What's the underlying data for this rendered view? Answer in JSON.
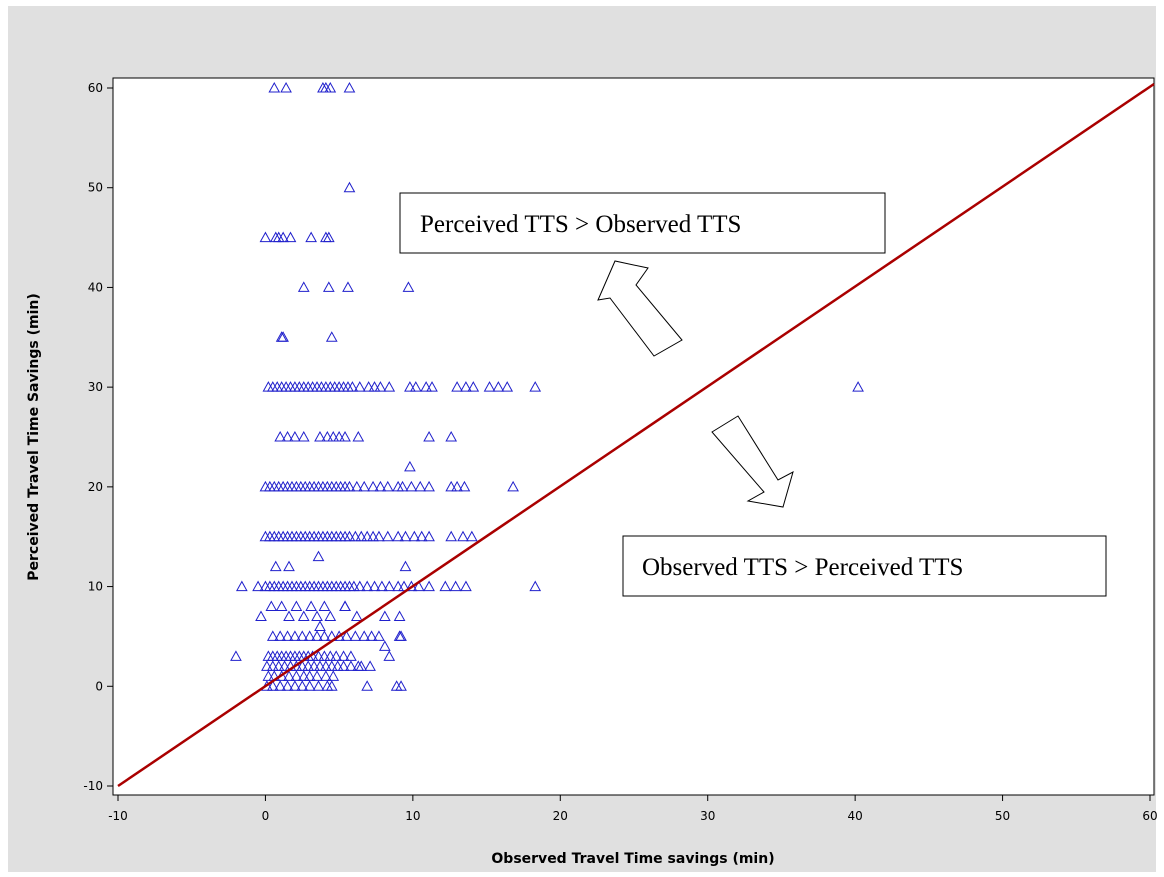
{
  "chart_data": {
    "type": "scatter",
    "title": "",
    "xlabel": "Observed Travel Time savings (min)",
    "ylabel": "Perceived Travel Time Savings (min)",
    "xlim": [
      -10,
      60
    ],
    "ylim": [
      -10,
      60
    ],
    "xticks": [
      "-10",
      "0",
      "10",
      "20",
      "30",
      "40",
      "50",
      "60"
    ],
    "yticks": [
      "-10",
      "0",
      "10",
      "20",
      "30",
      "40",
      "50",
      "60"
    ],
    "grid": false,
    "legend": "none",
    "colors": {
      "background": "#e0e0e0",
      "plot_bg": "#ffffff",
      "points": "#2020cc",
      "reference_line": "#aa0000"
    },
    "marker": "triangle-open",
    "reference_line": {
      "x": [
        -10,
        60
      ],
      "y": [
        -10,
        60
      ]
    },
    "annotations": [
      {
        "text": "Perceived TTS > Observed TTS",
        "arrow": "up-left"
      },
      {
        "text": "Observed TTS > Perceived TTS",
        "arrow": "down-right"
      }
    ],
    "series": [
      {
        "x": [
          0.6,
          1.4,
          3.9,
          4.1,
          4.4,
          5.7,
          5.7,
          0,
          0.7,
          0.9,
          1.2,
          1.7,
          3.1,
          4.1,
          4.3,
          11,
          2.6,
          4.3,
          5.6,
          9.7,
          1.1,
          1.2,
          4.5,
          0.2,
          0.5,
          0.8,
          1.1,
          1.4,
          1.7,
          2,
          2.3,
          2.6,
          2.9,
          3.2,
          3.5,
          3.8,
          4.1,
          4.4,
          4.7,
          5,
          5.3,
          5.6,
          5.9,
          6.4,
          7,
          7.4,
          7.8,
          8.4,
          9.8,
          10.2,
          10.9,
          11.3,
          13,
          13.6,
          14.1,
          15.2,
          15.8,
          16.4,
          18.3,
          40.2,
          1,
          1.5,
          2,
          2.6,
          3.7,
          4.2,
          4.6,
          5,
          5.4,
          6.3,
          11.1,
          12.6,
          9.8,
          0,
          0.3,
          0.6,
          0.9,
          1.2,
          1.5,
          1.8,
          2.1,
          2.4,
          2.7,
          3,
          3.3,
          3.6,
          3.9,
          4.2,
          4.5,
          4.8,
          5.1,
          5.4,
          5.7,
          6.2,
          6.7,
          7.3,
          7.8,
          8.3,
          9,
          9.3,
          9.9,
          10.5,
          11.1,
          12.6,
          13,
          13.5,
          16.8,
          0,
          0.3,
          0.6,
          0.9,
          1.2,
          1.5,
          1.8,
          2.1,
          2.4,
          2.7,
          3,
          3.3,
          3.6,
          3.9,
          4.2,
          4.5,
          4.8,
          5.1,
          5.4,
          5.7,
          6.1,
          6.5,
          6.9,
          7.3,
          7.7,
          8.3,
          9,
          9.5,
          10.1,
          10.6,
          11.1,
          12.6,
          13.4,
          14,
          0.7,
          1.6,
          3.6,
          9.5,
          -1.6,
          -0.5,
          0,
          0.3,
          0.6,
          0.9,
          1.2,
          1.5,
          1.8,
          2.1,
          2.4,
          2.7,
          3,
          3.3,
          3.6,
          3.9,
          4.2,
          4.5,
          4.8,
          5.1,
          5.4,
          5.7,
          6,
          6.4,
          6.9,
          7.4,
          7.9,
          8.4,
          9,
          9.4,
          9.9,
          10.4,
          11.1,
          12.2,
          12.9,
          13.6,
          18.3,
          5.4,
          8.1,
          9.1,
          -0.3,
          0.4,
          1.1,
          1.6,
          2.1,
          2.6,
          3.1,
          3.5,
          4,
          4.4,
          5.4,
          6.2,
          9.2,
          0.5,
          1,
          1.5,
          2,
          2.5,
          3,
          3.5,
          4,
          4.5,
          5,
          5.5,
          6.1,
          6.7,
          7.2,
          7.7,
          9.1,
          3.7,
          8.1,
          -2,
          0.2,
          0.5,
          0.8,
          1.1,
          1.4,
          1.7,
          2,
          2.3,
          2.6,
          2.9,
          3.2,
          3.6,
          4,
          4.4,
          4.8,
          5.3,
          5.8,
          6.5,
          8.4,
          0.1,
          0.5,
          0.9,
          1.3,
          1.7,
          2.1,
          2.5,
          2.9,
          3.3,
          3.7,
          4.1,
          4.5,
          4.9,
          5.3,
          5.8,
          6.3,
          7.1,
          0.2,
          0.6,
          1.1,
          1.6,
          2.1,
          2.6,
          3,
          3.5,
          4.1,
          4.6,
          0.1,
          0.5,
          1,
          1.5,
          2,
          2.5,
          3,
          3.6,
          4.2,
          4.5,
          6.9,
          8.9,
          9.2
        ],
        "y": [
          60,
          60,
          60,
          60,
          60,
          60,
          50,
          45,
          45,
          45,
          45,
          45,
          45,
          45,
          45,
          45,
          40,
          40,
          40,
          40,
          35,
          35,
          35,
          30,
          30,
          30,
          30,
          30,
          30,
          30,
          30,
          30,
          30,
          30,
          30,
          30,
          30,
          30,
          30,
          30,
          30,
          30,
          30,
          30,
          30,
          30,
          30,
          30,
          30,
          30,
          30,
          30,
          30,
          30,
          30,
          30,
          30,
          30,
          30,
          30,
          25,
          25,
          25,
          25,
          25,
          25,
          25,
          25,
          25,
          25,
          25,
          25,
          22,
          20,
          20,
          20,
          20,
          20,
          20,
          20,
          20,
          20,
          20,
          20,
          20,
          20,
          20,
          20,
          20,
          20,
          20,
          20,
          20,
          20,
          20,
          20,
          20,
          20,
          20,
          20,
          20,
          20,
          20,
          20,
          20,
          20,
          20,
          15,
          15,
          15,
          15,
          15,
          15,
          15,
          15,
          15,
          15,
          15,
          15,
          15,
          15,
          15,
          15,
          15,
          15,
          15,
          15,
          15,
          15,
          15,
          15,
          15,
          15,
          15,
          15,
          15,
          15,
          15,
          15,
          15,
          15,
          12,
          12,
          13,
          12,
          10,
          10,
          10,
          10,
          10,
          10,
          10,
          10,
          10,
          10,
          10,
          10,
          10,
          10,
          10,
          10,
          10,
          10,
          10,
          10,
          10,
          10,
          10,
          10,
          10,
          10,
          10,
          10,
          10,
          10,
          10,
          10,
          10,
          10,
          10,
          10,
          10,
          8,
          7,
          7,
          7,
          8,
          8,
          7,
          8,
          7,
          8,
          7,
          8,
          7,
          8,
          7,
          5,
          5,
          5,
          5,
          5,
          5,
          5,
          5,
          5,
          5,
          5,
          5,
          5,
          5,
          5,
          5,
          5,
          6,
          4,
          3,
          3,
          3,
          3,
          3,
          3,
          3,
          3,
          3,
          3,
          3,
          3,
          3,
          3,
          3,
          3,
          3,
          3,
          2,
          3,
          2,
          2,
          2,
          2,
          2,
          2,
          2,
          2,
          2,
          2,
          2,
          2,
          2,
          2,
          2,
          2,
          2,
          1,
          1,
          1,
          1,
          1,
          1,
          1,
          1,
          1,
          1,
          0,
          0,
          0,
          0,
          0,
          0,
          0,
          0,
          0,
          0,
          0,
          0,
          0
        ]
      }
    ]
  }
}
